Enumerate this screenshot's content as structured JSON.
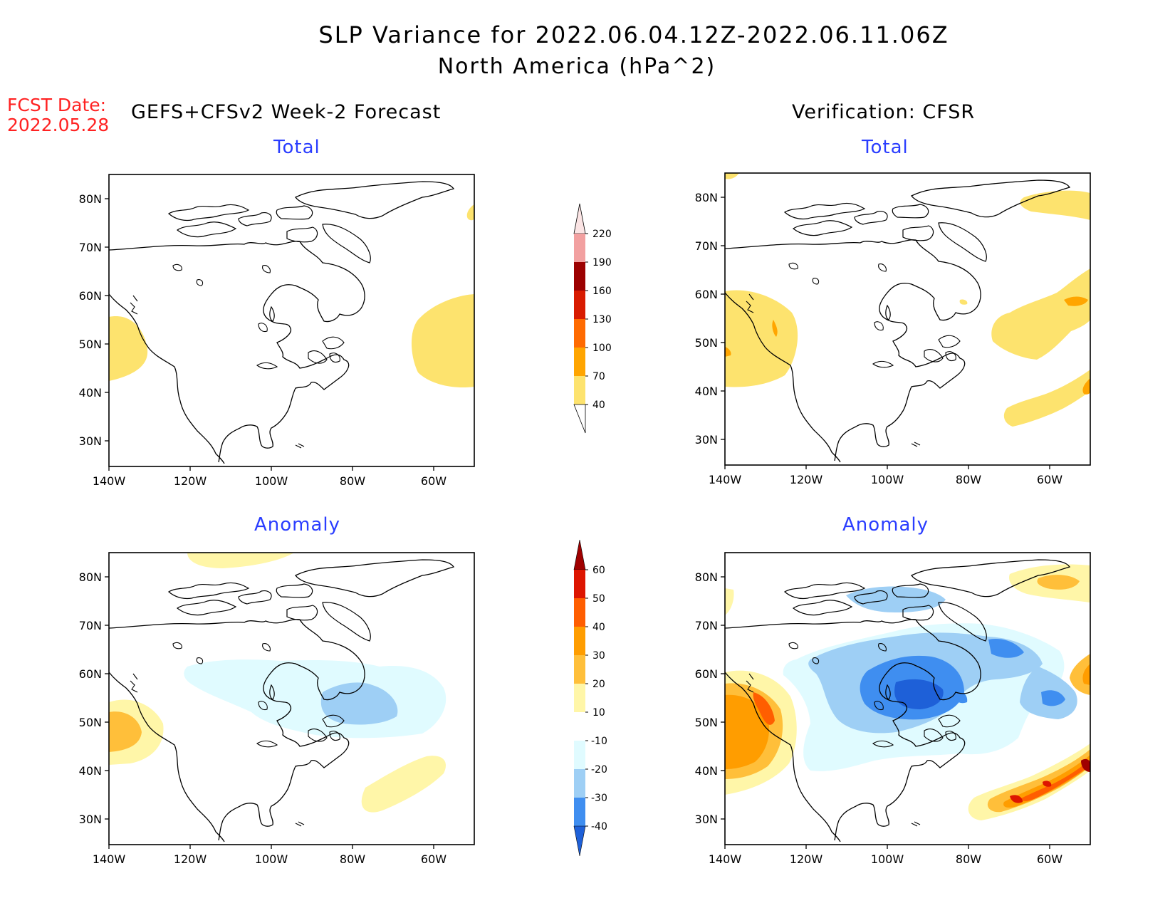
{
  "title": {
    "line1": "SLP Variance for 2022.06.04.12Z-2022.06.11.06Z",
    "line2": "North America (hPa^2)"
  },
  "forecast_date": {
    "label": "FCST Date:",
    "value": "2022.05.28"
  },
  "columns": {
    "left_header": "GEFS+CFSv2 Week-2 Forecast",
    "right_header": "Verification: CFSR"
  },
  "panels": {
    "fcst_total": {
      "title": "Total"
    },
    "fcst_anomaly": {
      "title": "Anomaly"
    },
    "verif_total": {
      "title": "Total"
    },
    "verif_anomaly": {
      "title": "Anomaly"
    }
  },
  "axes": {
    "lat_labels": [
      "80N",
      "70N",
      "60N",
      "50N",
      "40N",
      "30N"
    ],
    "lon_labels": [
      "140W",
      "120W",
      "100W",
      "80W",
      "60W"
    ]
  },
  "colorbars": {
    "total": {
      "labels": [
        "220",
        "190",
        "160",
        "130",
        "100",
        "70",
        "40"
      ],
      "colors": [
        "#fbe4e4",
        "#f2a0a0",
        "#9c0000",
        "#d81b00",
        "#ff6a00",
        "#ffa500",
        "#fde36e"
      ]
    },
    "anomaly": {
      "labels": [
        "60",
        "50",
        "40",
        "30",
        "20",
        "10",
        "-10",
        "-20",
        "-30",
        "-40"
      ],
      "colors": [
        "#a00000",
        "#dd1500",
        "#ff5e00",
        "#ff9d00",
        "#ffbf3a",
        "#fff6a8",
        "#ffffff",
        "#e0fbff",
        "#9ecff5",
        "#3f8ef0",
        "#1e60d8"
      ]
    }
  },
  "colors": {
    "fcst_red": "#ff2222",
    "panel_title_blue": "#2a3dff"
  }
}
